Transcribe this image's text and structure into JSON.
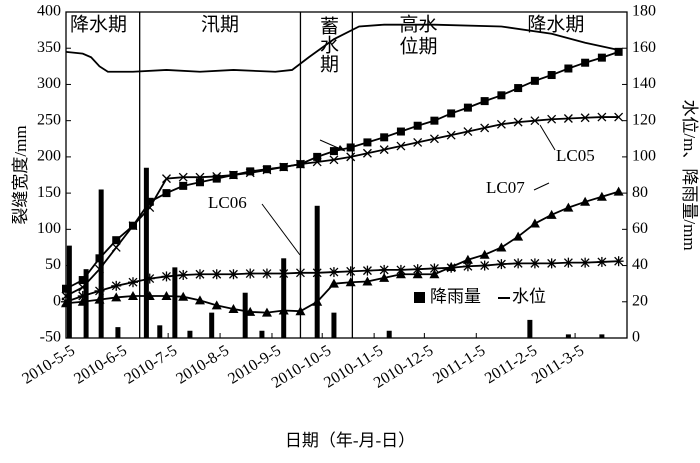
{
  "chart_data": {
    "type": "line",
    "x_label": "日期（年-月-日）",
    "y_label": "裂缝宽度/mm",
    "y2_label": "水位/m、降雨量/mm",
    "xlim": [
      0,
      335
    ],
    "ylim": [
      -50,
      400
    ],
    "y2lim": [
      0,
      180
    ],
    "xticks": [
      {
        "value": 0,
        "label": "2010-5-5"
      },
      {
        "value": 31,
        "label": "2010-6-5"
      },
      {
        "value": 61,
        "label": "2010-7-5"
      },
      {
        "value": 92,
        "label": "2010-8-5"
      },
      {
        "value": 123,
        "label": "2010-9-5"
      },
      {
        "value": 153,
        "label": "2010-10-5"
      },
      {
        "value": 184,
        "label": "2010-11-5"
      },
      {
        "value": 214,
        "label": "2010-12-5"
      },
      {
        "value": 245,
        "label": "2011-1-5"
      },
      {
        "value": 276,
        "label": "2011-2-5"
      },
      {
        "value": 304,
        "label": "2011-3-5"
      }
    ],
    "yticks": [
      -50,
      0,
      50,
      100,
      150,
      200,
      250,
      300,
      350,
      400
    ],
    "y2ticks": [
      0,
      20,
      40,
      60,
      80,
      100,
      120,
      140,
      160,
      180
    ],
    "dividers": [
      44,
      140,
      171
    ],
    "periods": [
      {
        "lines": [
          "降水期"
        ],
        "start": 0,
        "end": 44,
        "align": "left"
      },
      {
        "lines": [
          "汛期"
        ],
        "start": 44,
        "end": 140
      },
      {
        "lines": [
          "蓄水期"
        ],
        "start": 140,
        "end": 171,
        "vertical": true
      },
      {
        "lines": [
          "高水",
          "位期"
        ],
        "start": 171,
        "end": 250
      },
      {
        "lines": [
          "降水期"
        ],
        "start": 250,
        "end": 335
      }
    ],
    "series": [
      {
        "kind": "line",
        "marker": "square",
        "color": "#000",
        "x": [
          0,
          10,
          20,
          30,
          40,
          50,
          60,
          70,
          80,
          90,
          100,
          110,
          120,
          130,
          140,
          150,
          160,
          170,
          180,
          190,
          200,
          210,
          220,
          230,
          240,
          250,
          260,
          270,
          280,
          290,
          300,
          310,
          320,
          330
        ],
        "values": [
          18,
          30,
          60,
          85,
          105,
          138,
          150,
          160,
          165,
          170,
          175,
          180,
          183,
          186,
          190,
          200,
          208,
          213,
          220,
          227,
          235,
          243,
          250,
          260,
          268,
          277,
          285,
          295,
          305,
          313,
          322,
          330,
          337,
          345
        ]
      },
      {
        "name": "LC05",
        "kind": "line",
        "marker": "x",
        "color": "#000",
        "x": [
          0,
          10,
          20,
          30,
          40,
          50,
          60,
          70,
          80,
          90,
          100,
          110,
          120,
          130,
          140,
          150,
          160,
          170,
          180,
          190,
          200,
          210,
          220,
          230,
          240,
          250,
          260,
          270,
          280,
          290,
          300,
          310,
          320,
          330
        ],
        "values": [
          8,
          20,
          45,
          75,
          105,
          130,
          170,
          172,
          172,
          173,
          175,
          178,
          182,
          186,
          190,
          193,
          196,
          200,
          205,
          210,
          215,
          220,
          225,
          230,
          235,
          240,
          245,
          248,
          250,
          252,
          253,
          254,
          255,
          255
        ]
      },
      {
        "name": "LC06",
        "kind": "line",
        "marker": "star",
        "color": "#000",
        "x": [
          0,
          10,
          20,
          30,
          40,
          50,
          60,
          70,
          80,
          90,
          100,
          110,
          120,
          130,
          140,
          150,
          160,
          170,
          180,
          190,
          200,
          210,
          220,
          230,
          240,
          250,
          260,
          270,
          280,
          290,
          300,
          310,
          320,
          330
        ],
        "values": [
          0,
          8,
          15,
          22,
          27,
          32,
          35,
          37,
          38,
          38,
          38,
          39,
          39,
          39,
          40,
          40,
          41,
          42,
          43,
          44,
          44,
          45,
          46,
          47,
          49,
          50,
          52,
          53,
          53,
          53,
          54,
          54,
          55,
          56
        ]
      },
      {
        "name": "LC07",
        "kind": "line",
        "marker": "triangle",
        "color": "#000",
        "x": [
          0,
          10,
          20,
          30,
          40,
          50,
          60,
          70,
          80,
          90,
          100,
          110,
          120,
          130,
          140,
          150,
          160,
          170,
          180,
          190,
          200,
          210,
          220,
          230,
          240,
          250,
          260,
          270,
          280,
          290,
          300,
          310,
          320,
          330
        ],
        "values": [
          -2,
          0,
          3,
          6,
          8,
          8,
          8,
          7,
          2,
          -5,
          -10,
          -14,
          -15,
          -12,
          -13,
          0,
          25,
          27,
          28,
          33,
          38,
          38,
          38,
          48,
          58,
          65,
          75,
          90,
          108,
          120,
          130,
          138,
          145,
          152
        ]
      },
      {
        "name": "降雨量",
        "kind": "bar",
        "axis": "y2",
        "color": "#000",
        "x": [
          2,
          12,
          21,
          31,
          48,
          56,
          65,
          74,
          87,
          107,
          117,
          130,
          150,
          160,
          193,
          277,
          300,
          320
        ],
        "values": [
          51,
          38,
          82,
          6,
          94,
          7,
          39,
          4,
          14,
          25,
          4,
          44,
          73,
          14,
          4,
          10,
          2,
          2
        ]
      },
      {
        "name": "水位",
        "kind": "line",
        "axis": "y2",
        "marker": "none",
        "color": "#000",
        "x": [
          0,
          10,
          15,
          20,
          25,
          40,
          60,
          80,
          100,
          125,
          135,
          145,
          160,
          175,
          190,
          220,
          260,
          290,
          310,
          330
        ],
        "values": [
          158,
          157,
          155,
          150,
          147,
          147,
          148,
          147,
          148,
          147,
          148,
          155,
          165,
          172,
          173,
          173,
          172,
          168,
          163,
          159
        ]
      }
    ]
  }
}
